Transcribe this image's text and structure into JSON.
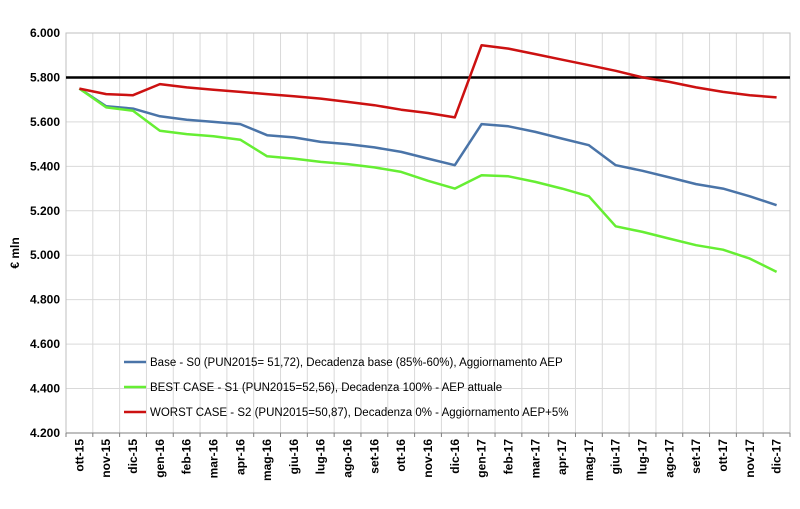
{
  "chart_data": {
    "type": "line",
    "title": "",
    "xlabel": "",
    "ylabel": "€ mln",
    "ylim": [
      4200,
      6000
    ],
    "y_ticks": [
      "4.200",
      "4.400",
      "4.600",
      "4.800",
      "5.000",
      "5.200",
      "5.400",
      "5.600",
      "5.800",
      "6.000"
    ],
    "y_tick_values": [
      4200,
      4400,
      4600,
      4800,
      5000,
      5200,
      5400,
      5600,
      5800,
      6000
    ],
    "grid": true,
    "legend_position": "bottom-left",
    "categories": [
      "ott-15",
      "nov-15",
      "dic-15",
      "gen-16",
      "feb-16",
      "mar-16",
      "apr-16",
      "mag-16",
      "giu-16",
      "lug-16",
      "ago-16",
      "set-16",
      "ott-16",
      "nov-16",
      "dic-16",
      "gen-17",
      "feb-17",
      "mar-17",
      "apr-17",
      "mag-17",
      "giu-17",
      "lug-17",
      "ago-17",
      "set-17",
      "ott-17",
      "nov-17",
      "dic-17"
    ],
    "series": [
      {
        "name": "Base - S0 (PUN2015= 51,72), Decadenza base (85%-60%), Aggiornamento AEP",
        "color": "#4a74a8",
        "values": [
          5750,
          5670,
          5660,
          5625,
          5610,
          5600,
          5590,
          5540,
          5530,
          5510,
          5500,
          5485,
          5465,
          5435,
          5405,
          5590,
          5580,
          5555,
          5525,
          5495,
          5405,
          5380,
          5350,
          5320,
          5300,
          5265,
          5225
        ]
      },
      {
        "name": "BEST CASE - S1 (PUN2015=52,56), Decadenza 100% - AEP attuale",
        "color": "#66ee33",
        "values": [
          5750,
          5665,
          5650,
          5560,
          5545,
          5535,
          5520,
          5445,
          5435,
          5420,
          5410,
          5395,
          5375,
          5335,
          5300,
          5360,
          5355,
          5330,
          5300,
          5265,
          5130,
          5105,
          5075,
          5045,
          5025,
          4985,
          4925
        ]
      },
      {
        "name": "WORST CASE - S2 (PUN2015=50,87), Decadenza 0% - Aggiornamento AEP+5%",
        "color": "#cc1111",
        "values": [
          5750,
          5725,
          5720,
          5770,
          5755,
          5745,
          5735,
          5725,
          5715,
          5705,
          5690,
          5675,
          5655,
          5640,
          5620,
          5945,
          5930,
          5905,
          5880,
          5855,
          5830,
          5800,
          5780,
          5755,
          5735,
          5720,
          5710
        ]
      }
    ],
    "reference_line": {
      "value": 5800,
      "color": "#000000"
    }
  }
}
